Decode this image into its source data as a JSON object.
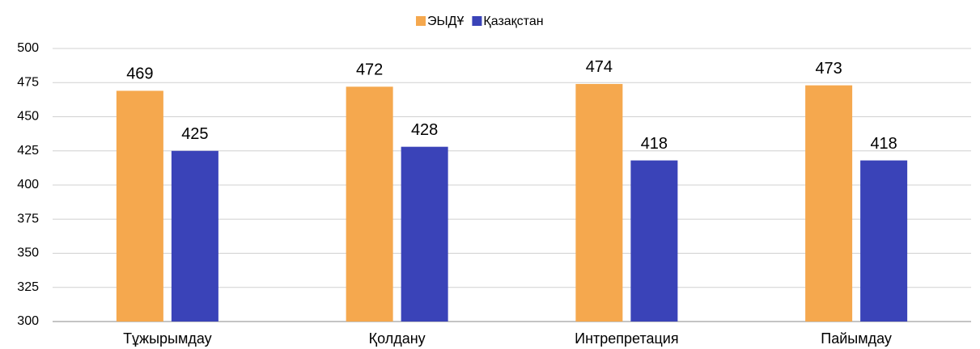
{
  "chart_data": {
    "type": "bar",
    "categories": [
      "Тұжырымдау",
      "Қолдану",
      "Интрепретация",
      "Пайымдау"
    ],
    "series": [
      {
        "name": "ЭЫДҰ",
        "color": "#f5a84e",
        "values": [
          469,
          472,
          474,
          473
        ]
      },
      {
        "name": "Қазақстан",
        "color": "#3a43b8",
        "values": [
          425,
          428,
          418,
          418
        ]
      }
    ],
    "ylim": [
      300,
      500
    ],
    "yticks": [
      300,
      325,
      350,
      375,
      400,
      425,
      450,
      475,
      500
    ],
    "grid": true,
    "legend": "top"
  }
}
